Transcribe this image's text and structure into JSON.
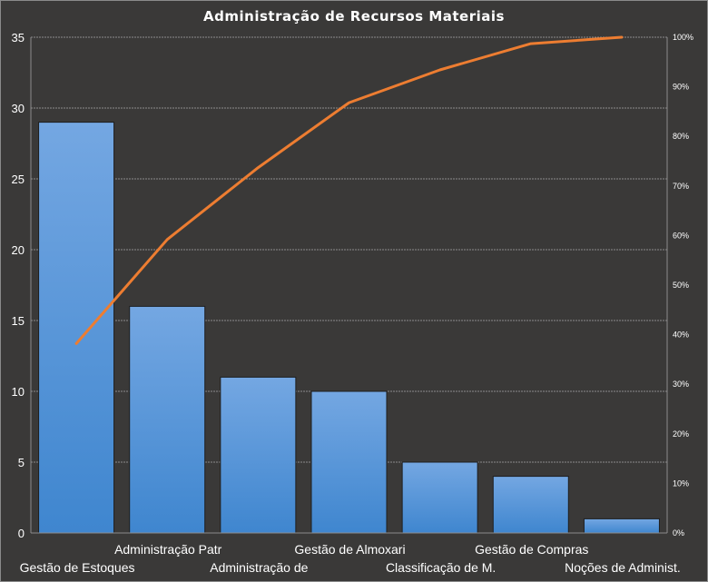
{
  "chart_data": {
    "type": "bar",
    "title": "Administração  de Recursos  Materiais",
    "categories": [
      "Gestão de Estoques",
      "Administração Patr",
      "Administração de",
      "Gestão de Almoxari",
      "Classificação de M.",
      "Gestão de Compras",
      "Noções de Administ."
    ],
    "values": [
      29,
      16,
      11,
      10,
      5,
      4,
      1
    ],
    "cumulative_percent": [
      38.2,
      59.2,
      73.7,
      86.8,
      93.4,
      98.7,
      100
    ],
    "ylim": [
      0,
      35
    ],
    "yticks": [
      "0",
      "5",
      "10",
      "15",
      "20",
      "25",
      "30",
      "35"
    ],
    "y2lim": [
      0,
      100
    ],
    "y2ticks": [
      "0%",
      "10%",
      "20%",
      "30%",
      "40%",
      "50%",
      "60%",
      "70%",
      "80%",
      "90%",
      "100%"
    ],
    "grid": true,
    "colors": {
      "bar_top": "#74a7e2",
      "bar_bottom": "#3f86cf",
      "line": "#ed7d31",
      "background": "#3a3938",
      "grid": "#8c8c8c",
      "text": "#ffffff"
    }
  }
}
